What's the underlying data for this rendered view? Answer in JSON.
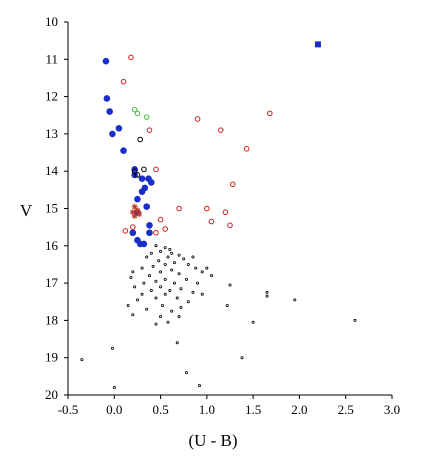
{
  "chart_data": {
    "type": "scatter",
    "title": "",
    "xlabel": "(U - B)",
    "ylabel": "V",
    "xlim": [
      -0.5,
      3.0
    ],
    "ylim": [
      20,
      10
    ],
    "y_inverted": true,
    "grid": false,
    "x_ticks": [
      "-0.5",
      "0.0",
      "0.5",
      "1.0",
      "1.5",
      "2.0",
      "2.5",
      "3.0"
    ],
    "y_ticks": [
      "10",
      "11",
      "12",
      "13",
      "14",
      "15",
      "16",
      "17",
      "18",
      "19",
      "20"
    ],
    "series": [
      {
        "marker": "filled-circle",
        "color": "#1a2fc9",
        "points": [
          [
            -0.09,
            11.05
          ],
          [
            -0.08,
            12.05
          ],
          [
            -0.05,
            12.4
          ],
          [
            0.05,
            12.85
          ],
          [
            -0.02,
            13.0
          ],
          [
            0.1,
            13.45
          ],
          [
            0.22,
            13.95
          ],
          [
            0.22,
            14.1
          ],
          [
            0.3,
            14.2
          ],
          [
            0.37,
            14.2
          ],
          [
            0.4,
            14.3
          ],
          [
            0.33,
            14.45
          ],
          [
            0.3,
            14.55
          ],
          [
            0.25,
            14.75
          ],
          [
            0.35,
            14.95
          ],
          [
            0.25,
            15.1
          ],
          [
            0.38,
            15.45
          ],
          [
            0.38,
            15.65
          ],
          [
            0.2,
            15.65
          ],
          [
            0.25,
            15.85
          ],
          [
            0.28,
            15.95
          ],
          [
            0.32,
            15.95
          ]
        ]
      },
      {
        "marker": "filled-square",
        "color": "#1a2fc9",
        "points": [
          [
            2.2,
            10.6
          ]
        ]
      },
      {
        "marker": "open-circle",
        "color": "#d42020",
        "points": [
          [
            0.18,
            10.95
          ],
          [
            0.1,
            11.6
          ],
          [
            0.9,
            12.6
          ],
          [
            1.15,
            12.9
          ],
          [
            1.68,
            12.45
          ],
          [
            0.38,
            12.9
          ],
          [
            1.43,
            13.4
          ],
          [
            0.45,
            13.95
          ],
          [
            1.28,
            14.35
          ],
          [
            0.7,
            15.0
          ],
          [
            1.0,
            15.0
          ],
          [
            1.2,
            15.1
          ],
          [
            0.5,
            15.3
          ],
          [
            1.05,
            15.35
          ],
          [
            1.25,
            15.45
          ],
          [
            0.2,
            15.5
          ],
          [
            0.12,
            15.6
          ],
          [
            0.55,
            15.55
          ],
          [
            0.45,
            15.65
          ]
        ]
      },
      {
        "marker": "open-circle",
        "color": "#3fbf3f",
        "points": [
          [
            0.22,
            12.35
          ],
          [
            0.25,
            12.45
          ],
          [
            0.35,
            12.55
          ]
        ]
      },
      {
        "marker": "open-circle",
        "color": "#000000",
        "points": [
          [
            0.28,
            13.15
          ],
          [
            0.22,
            14.0
          ],
          [
            0.25,
            14.1
          ],
          [
            0.32,
            13.95
          ]
        ]
      },
      {
        "marker": "asterisk",
        "color": "#c0392b",
        "points": [
          [
            0.22,
            14.95
          ],
          [
            0.25,
            15.05
          ],
          [
            0.2,
            15.1
          ],
          [
            0.27,
            15.15
          ],
          [
            0.22,
            15.2
          ]
        ]
      },
      {
        "marker": "dot",
        "color": "#000000",
        "points": [
          [
            0.45,
            16.0
          ],
          [
            0.55,
            16.05
          ],
          [
            0.6,
            16.1
          ],
          [
            0.5,
            16.15
          ],
          [
            0.4,
            16.2
          ],
          [
            0.62,
            16.2
          ],
          [
            0.7,
            16.25
          ],
          [
            0.35,
            16.3
          ],
          [
            0.58,
            16.3
          ],
          [
            0.48,
            16.4
          ],
          [
            0.75,
            16.35
          ],
          [
            0.65,
            16.45
          ],
          [
            0.55,
            16.5
          ],
          [
            0.42,
            16.55
          ],
          [
            0.8,
            16.5
          ],
          [
            0.3,
            16.6
          ],
          [
            0.62,
            16.65
          ],
          [
            0.88,
            16.6
          ],
          [
            0.2,
            16.7
          ],
          [
            0.5,
            16.7
          ],
          [
            0.7,
            16.75
          ],
          [
            0.38,
            16.8
          ],
          [
            0.95,
            16.7
          ],
          [
            0.18,
            16.85
          ],
          [
            0.55,
            16.9
          ],
          [
            0.45,
            16.95
          ],
          [
            0.78,
            16.9
          ],
          [
            0.32,
            17.0
          ],
          [
            0.65,
            17.0
          ],
          [
            0.9,
            17.0
          ],
          [
            0.22,
            17.1
          ],
          [
            0.5,
            17.1
          ],
          [
            0.72,
            17.15
          ],
          [
            0.4,
            17.2
          ],
          [
            0.6,
            17.2
          ],
          [
            0.85,
            17.25
          ],
          [
            0.3,
            17.3
          ],
          [
            0.55,
            17.3
          ],
          [
            0.95,
            17.3
          ],
          [
            0.45,
            17.4
          ],
          [
            0.68,
            17.4
          ],
          [
            0.25,
            17.45
          ],
          [
            0.8,
            17.5
          ],
          [
            0.15,
            17.6
          ],
          [
            0.52,
            17.6
          ],
          [
            0.72,
            17.65
          ],
          [
            0.35,
            17.7
          ],
          [
            0.62,
            17.75
          ],
          [
            0.2,
            17.85
          ],
          [
            0.5,
            17.9
          ],
          [
            0.7,
            17.9
          ],
          [
            0.45,
            18.1
          ],
          [
            0.58,
            18.05
          ],
          [
            0.85,
            16.3
          ],
          [
            1.0,
            16.6
          ],
          [
            1.05,
            16.8
          ],
          [
            1.25,
            17.05
          ],
          [
            1.22,
            17.6
          ],
          [
            1.65,
            17.25
          ],
          [
            1.95,
            17.45
          ],
          [
            1.65,
            17.35
          ],
          [
            1.5,
            18.05
          ],
          [
            2.6,
            18.0
          ],
          [
            0.68,
            18.6
          ],
          [
            -0.35,
            19.05
          ],
          [
            1.38,
            19.0
          ],
          [
            0.78,
            19.4
          ],
          [
            -0.02,
            18.75
          ],
          [
            0.0,
            19.8
          ],
          [
            0.92,
            19.75
          ]
        ]
      }
    ]
  }
}
